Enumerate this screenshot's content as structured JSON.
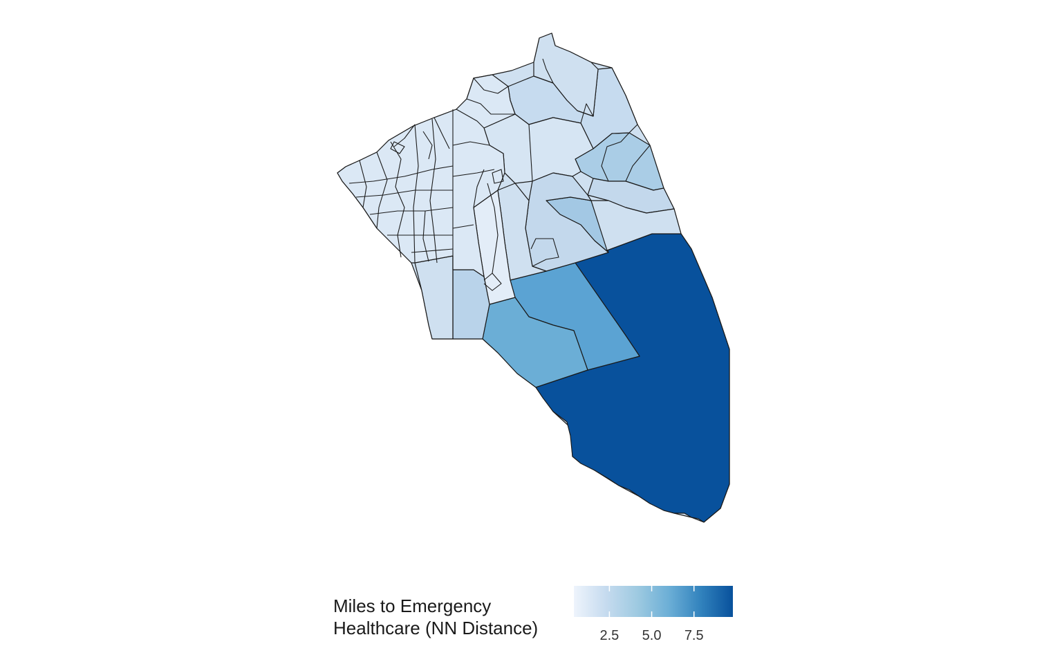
{
  "legend": {
    "title_line1": "Miles to Emergency",
    "title_line2": "Healthcare (NN Distance)",
    "ticks": [
      {
        "value": 2.5,
        "label": "2.5"
      },
      {
        "value": 5.0,
        "label": "5.0"
      },
      {
        "value": 7.5,
        "label": "7.5"
      }
    ],
    "range": [
      0.4,
      9.8
    ],
    "colors": [
      "#eef4fc",
      "#c6dbef",
      "#9ecae1",
      "#6baed6",
      "#3182bd",
      "#08519c"
    ]
  },
  "map_data": {
    "type": "choropleth",
    "variable": "Miles to Emergency Healthcare (NN Distance)",
    "regions": [
      {
        "id": "south-large",
        "value": 9.4
      },
      {
        "id": "south-mid-east",
        "value": 6.4
      },
      {
        "id": "south-mid-west",
        "value": 6.0
      },
      {
        "id": "north-east-edge",
        "value": 2.2
      },
      {
        "id": "east-mid",
        "value": 3.2
      },
      {
        "id": "east-lower",
        "value": 1.8
      },
      {
        "id": "central-east",
        "value": 1.4
      },
      {
        "id": "central",
        "value": 0.9
      },
      {
        "id": "central-south",
        "value": 0.7
      },
      {
        "id": "southwest",
        "value": 1.6
      },
      {
        "id": "northwest-urban",
        "value": 0.6
      },
      {
        "id": "north-top",
        "value": 1.5
      },
      {
        "id": "east-band",
        "value": 4.2
      }
    ]
  }
}
